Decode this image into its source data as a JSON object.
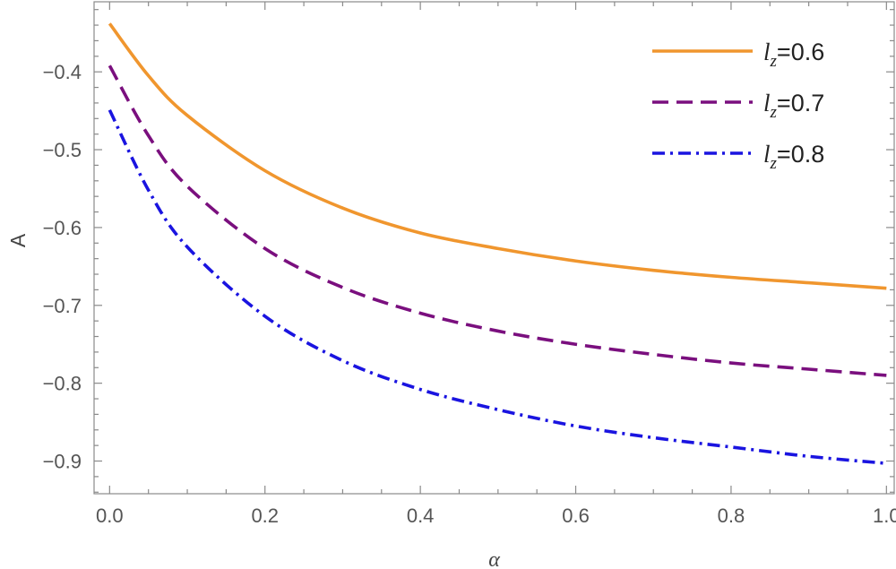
{
  "chart_data": {
    "type": "line",
    "xlabel": "α",
    "ylabel": "A",
    "xlim": [
      -0.02,
      1.01
    ],
    "ylim": [
      -0.942,
      -0.31
    ],
    "xticks": [
      0.0,
      0.2,
      0.4,
      0.6,
      0.8,
      1.0
    ],
    "xtick_labels": [
      "0.0",
      "0.2",
      "0.4",
      "0.6",
      "0.8",
      "1.0"
    ],
    "yticks": [
      -0.4,
      -0.5,
      -0.6,
      -0.7,
      -0.8,
      -0.9
    ],
    "ytick_labels": [
      "−0.4",
      "−0.5",
      "−0.6",
      "−0.7",
      "−0.8",
      "−0.9"
    ],
    "legend_position": "top-right",
    "grid": false,
    "x": [
      0.0,
      0.05,
      0.1,
      0.2,
      0.3,
      0.4,
      0.5,
      0.6,
      0.7,
      0.8,
      0.9,
      1.0
    ],
    "series": [
      {
        "name_symbol": "l",
        "name_sub": "z",
        "name_value": "=0.6",
        "color": "#f0962e",
        "dash": "solid",
        "values": [
          -0.338,
          -0.405,
          -0.456,
          -0.527,
          -0.575,
          -0.607,
          -0.627,
          -0.643,
          -0.655,
          -0.664,
          -0.671,
          -0.678
        ]
      },
      {
        "name_symbol": "l",
        "name_sub": "z",
        "name_value": "=0.7",
        "color": "#7a0f7e",
        "dash": "dashed",
        "values": [
          -0.392,
          -0.482,
          -0.547,
          -0.627,
          -0.677,
          -0.71,
          -0.733,
          -0.75,
          -0.763,
          -0.774,
          -0.782,
          -0.79
        ]
      },
      {
        "name_symbol": "l",
        "name_sub": "z",
        "name_value": "=0.8",
        "color": "#1a14e0",
        "dash": "dashdot",
        "values": [
          -0.449,
          -0.552,
          -0.625,
          -0.714,
          -0.771,
          -0.808,
          -0.834,
          -0.855,
          -0.87,
          -0.882,
          -0.894,
          -0.903
        ]
      }
    ]
  }
}
